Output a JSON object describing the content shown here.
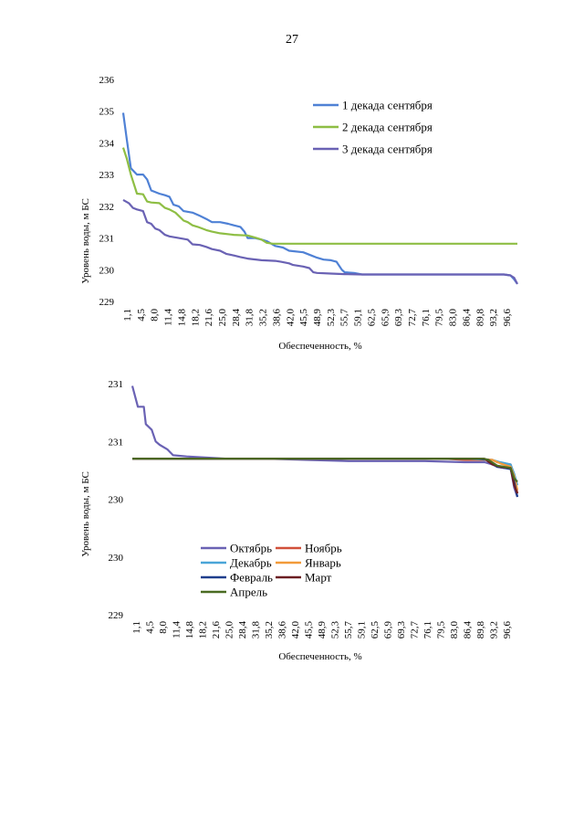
{
  "page_number": "27",
  "chart_data": [
    {
      "type": "line",
      "title": "",
      "ylabel": "Уровень воды, м БС",
      "xlabel": "Обеспеченность, %",
      "ylim": [
        229,
        236
      ],
      "yticks": [
        "229",
        "230",
        "231",
        "232",
        "233",
        "234",
        "235",
        "236"
      ],
      "xticks": [
        "1,1",
        "4,5",
        "8,0",
        "11,4",
        "14,8",
        "18,2",
        "21,6",
        "25,0",
        "28,4",
        "31,8",
        "35,2",
        "38,6",
        "42,0",
        "45,5",
        "48,9",
        "52,3",
        "55,7",
        "59,1",
        "62,5",
        "65,9",
        "69,3",
        "72,7",
        "76,1",
        "79,5",
        "83,0",
        "86,4",
        "89,8",
        "93,2",
        "96,6"
      ],
      "xlim": [
        1.1,
        98.3
      ],
      "legend": "right",
      "series": [
        {
          "name": "1 декада сентября",
          "color": "#4f81d5",
          "points": [
            [
              1.1,
              234.95
            ],
            [
              2.0,
              234.1
            ],
            [
              3.0,
              233.2
            ],
            [
              4.5,
              233.0
            ],
            [
              6.0,
              233.0
            ],
            [
              7.0,
              232.85
            ],
            [
              8.0,
              232.5
            ],
            [
              10.0,
              232.4
            ],
            [
              11.4,
              232.35
            ],
            [
              12.5,
              232.3
            ],
            [
              13.5,
              232.05
            ],
            [
              14.8,
              232.0
            ],
            [
              16.0,
              231.85
            ],
            [
              18.2,
              231.8
            ],
            [
              20.0,
              231.7
            ],
            [
              21.6,
              231.6
            ],
            [
              23.0,
              231.5
            ],
            [
              25.0,
              231.5
            ],
            [
              27.0,
              231.45
            ],
            [
              28.4,
              231.4
            ],
            [
              30.0,
              231.35
            ],
            [
              31.0,
              231.2
            ],
            [
              31.8,
              231.0
            ],
            [
              33.5,
              231.0
            ],
            [
              35.2,
              230.95
            ],
            [
              36.5,
              230.9
            ],
            [
              38.6,
              230.75
            ],
            [
              40.5,
              230.7
            ],
            [
              42.0,
              230.6
            ],
            [
              45.5,
              230.55
            ],
            [
              47.5,
              230.45
            ],
            [
              48.9,
              230.38
            ],
            [
              50.5,
              230.32
            ],
            [
              52.3,
              230.3
            ],
            [
              53.7,
              230.25
            ],
            [
              55.0,
              230.0
            ],
            [
              55.7,
              229.92
            ],
            [
              58.0,
              229.9
            ],
            [
              60.0,
              229.85
            ],
            [
              75.0,
              229.85
            ],
            [
              90.0,
              229.85
            ],
            [
              95.0,
              229.85
            ],
            [
              96.6,
              229.82
            ],
            [
              97.5,
              229.7
            ],
            [
              98.3,
              229.55
            ]
          ]
        },
        {
          "name": "2 декада сентября",
          "color": "#8ebe44",
          "points": [
            [
              1.1,
              233.85
            ],
            [
              2.0,
              233.5
            ],
            [
              3.0,
              233.0
            ],
            [
              4.5,
              232.4
            ],
            [
              6.0,
              232.38
            ],
            [
              7.0,
              232.15
            ],
            [
              8.0,
              232.12
            ],
            [
              10.0,
              232.1
            ],
            [
              11.4,
              231.95
            ],
            [
              12.5,
              231.9
            ],
            [
              14.0,
              231.8
            ],
            [
              14.8,
              231.7
            ],
            [
              16.0,
              231.55
            ],
            [
              17.0,
              231.5
            ],
            [
              18.2,
              231.4
            ],
            [
              19.5,
              231.35
            ],
            [
              21.6,
              231.25
            ],
            [
              23.0,
              231.2
            ],
            [
              25.0,
              231.15
            ],
            [
              28.4,
              231.1
            ],
            [
              31.8,
              231.08
            ],
            [
              34.0,
              231.0
            ],
            [
              35.2,
              230.95
            ],
            [
              36.5,
              230.85
            ],
            [
              38.0,
              230.82
            ],
            [
              38.6,
              230.82
            ],
            [
              60.0,
              230.82
            ],
            [
              80.0,
              230.82
            ],
            [
              98.3,
              230.82
            ]
          ]
        },
        {
          "name": "3 декада сентября",
          "color": "#6a62b4",
          "points": [
            [
              1.1,
              232.2
            ],
            [
              2.5,
              232.1
            ],
            [
              3.5,
              231.95
            ],
            [
              4.5,
              231.9
            ],
            [
              6.0,
              231.85
            ],
            [
              7.0,
              231.5
            ],
            [
              8.0,
              231.45
            ],
            [
              9.0,
              231.3
            ],
            [
              10.0,
              231.25
            ],
            [
              11.4,
              231.1
            ],
            [
              12.5,
              231.05
            ],
            [
              14.8,
              231.0
            ],
            [
              17.0,
              230.95
            ],
            [
              18.2,
              230.8
            ],
            [
              20.0,
              230.78
            ],
            [
              21.6,
              230.72
            ],
            [
              23.0,
              230.65
            ],
            [
              25.0,
              230.6
            ],
            [
              26.5,
              230.5
            ],
            [
              28.4,
              230.45
            ],
            [
              30.0,
              230.4
            ],
            [
              31.8,
              230.35
            ],
            [
              35.2,
              230.3
            ],
            [
              38.6,
              230.28
            ],
            [
              40.0,
              230.25
            ],
            [
              42.0,
              230.2
            ],
            [
              43.0,
              230.15
            ],
            [
              45.5,
              230.1
            ],
            [
              47.0,
              230.05
            ],
            [
              48.0,
              229.92
            ],
            [
              48.9,
              229.9
            ],
            [
              52.3,
              229.88
            ],
            [
              55.7,
              229.86
            ],
            [
              60.0,
              229.85
            ],
            [
              75.0,
              229.85
            ],
            [
              90.0,
              229.85
            ],
            [
              95.0,
              229.85
            ],
            [
              96.6,
              229.82
            ],
            [
              97.5,
              229.75
            ],
            [
              98.3,
              229.55
            ]
          ]
        }
      ]
    },
    {
      "type": "line",
      "title": "",
      "ylabel": "Уровень воды, м БС",
      "xlabel": "Обеспеченность, %",
      "ylim": [
        229,
        231
      ],
      "yticks": [
        "229",
        "230",
        "230",
        "231",
        "231"
      ],
      "xticks": [
        "1,1",
        "4,5",
        "8,0",
        "11,4",
        "14,8",
        "18,2",
        "21,6",
        "25,0",
        "28,4",
        "31,8",
        "35,2",
        "38,6",
        "42,0",
        "45,5",
        "48,9",
        "52,3",
        "55,7",
        "59,1",
        "62,5",
        "65,9",
        "69,3",
        "72,7",
        "76,1",
        "79,5",
        "83,0",
        "86,4",
        "89,8",
        "93,2",
        "96,6"
      ],
      "xlim": [
        1.1,
        98.3
      ],
      "legend": "bottom-left",
      "series": [
        {
          "name": "Октябрь",
          "color": "#6a62b4",
          "points": [
            [
              1.1,
              230.98
            ],
            [
              2.5,
              230.8
            ],
            [
              4.0,
              230.8
            ],
            [
              4.5,
              230.65
            ],
            [
              6.0,
              230.6
            ],
            [
              7.0,
              230.5
            ],
            [
              8.0,
              230.47
            ],
            [
              10.0,
              230.43
            ],
            [
              11.4,
              230.38
            ],
            [
              14.8,
              230.37
            ],
            [
              20.0,
              230.36
            ],
            [
              25.0,
              230.35
            ],
            [
              35.0,
              230.35
            ],
            [
              45.5,
              230.34
            ],
            [
              55.7,
              230.33
            ],
            [
              65.0,
              230.33
            ],
            [
              75.0,
              230.33
            ],
            [
              85.0,
              230.32
            ],
            [
              90.0,
              230.32
            ],
            [
              92.0,
              230.3
            ],
            [
              93.2,
              230.28
            ],
            [
              95.0,
              230.27
            ],
            [
              96.6,
              230.27
            ],
            [
              97.5,
              230.1
            ],
            [
              98.3,
              230.02
            ]
          ]
        },
        {
          "name": "Ноябрь",
          "color": "#d1503a",
          "points": [
            [
              1.1,
              230.35
            ],
            [
              80.0,
              230.35
            ],
            [
              85.0,
              230.34
            ],
            [
              92.0,
              230.34
            ],
            [
              93.2,
              230.32
            ],
            [
              96.6,
              230.3
            ],
            [
              97.5,
              230.2
            ],
            [
              98.3,
              230.05
            ]
          ]
        },
        {
          "name": "Декабрь",
          "color": "#4aa5d8",
          "points": [
            [
              1.1,
              230.35
            ],
            [
              85.0,
              230.35
            ],
            [
              92.0,
              230.34
            ],
            [
              94.0,
              230.32
            ],
            [
              96.6,
              230.3
            ],
            [
              97.5,
              230.22
            ],
            [
              98.3,
              230.12
            ]
          ]
        },
        {
          "name": "Январь",
          "color": "#f29b3a",
          "points": [
            [
              1.1,
              230.35
            ],
            [
              88.0,
              230.35
            ],
            [
              92.0,
              230.34
            ],
            [
              94.0,
              230.31
            ],
            [
              96.6,
              230.28
            ],
            [
              97.5,
              230.2
            ],
            [
              98.3,
              230.08
            ]
          ]
        },
        {
          "name": "Февраль",
          "color": "#1f3e8c",
          "points": [
            [
              1.1,
              230.35
            ],
            [
              88.0,
              230.35
            ],
            [
              91.0,
              230.34
            ],
            [
              93.2,
              230.28
            ],
            [
              95.0,
              230.27
            ],
            [
              96.6,
              230.26
            ],
            [
              97.5,
              230.15
            ],
            [
              98.3,
              230.02
            ]
          ]
        },
        {
          "name": "Март",
          "color": "#6b1e22",
          "points": [
            [
              1.1,
              230.35
            ],
            [
              88.0,
              230.35
            ],
            [
              90.0,
              230.35
            ],
            [
              92.0,
              230.3
            ],
            [
              94.0,
              230.28
            ],
            [
              96.6,
              230.27
            ],
            [
              97.5,
              230.12
            ],
            [
              98.3,
              230.05
            ]
          ]
        },
        {
          "name": "Апрель",
          "color": "#4a6b22",
          "points": [
            [
              1.1,
              230.35
            ],
            [
              89.8,
              230.35
            ],
            [
              91.0,
              230.34
            ],
            [
              93.2,
              230.29
            ],
            [
              95.0,
              230.28
            ],
            [
              96.6,
              230.27
            ],
            [
              97.5,
              230.18
            ],
            [
              98.3,
              230.15
            ]
          ]
        }
      ]
    }
  ]
}
